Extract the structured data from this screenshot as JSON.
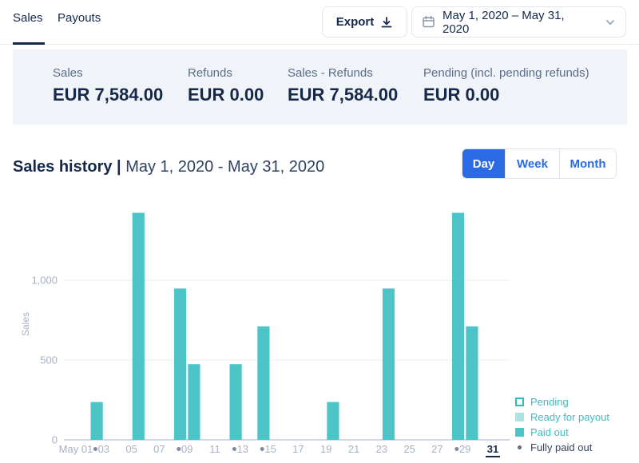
{
  "header": {
    "tabs": [
      {
        "label": "Sales",
        "active": true
      },
      {
        "label": "Payouts",
        "active": false
      }
    ],
    "export_label": "Export",
    "date_range": "May 1, 2020 – May 31, 2020"
  },
  "stats": [
    {
      "label": "Sales",
      "value": "EUR 7,584.00"
    },
    {
      "label": "Refunds",
      "value": "EUR 0.00"
    },
    {
      "label": "Sales - Refunds",
      "value": "EUR 7,584.00"
    },
    {
      "label": "Pending (incl. pending refunds)",
      "value": "EUR 0.00"
    }
  ],
  "section": {
    "title": "Sales history |",
    "range": " May 1, 2020 - May 31, 2020",
    "toggles": [
      {
        "label": "Day",
        "active": true
      },
      {
        "label": "Week",
        "active": false
      },
      {
        "label": "Month",
        "active": false
      }
    ]
  },
  "chart_data": {
    "type": "bar",
    "title": "Sales history May 1, 2020 - May 31, 2020",
    "ylabel": "Sales",
    "xlabel": "",
    "ylim": [
      0,
      1450
    ],
    "grid": true,
    "legend_position": "bottom-right",
    "y_ticks": [
      {
        "value": 0,
        "label": "0"
      },
      {
        "value": 500,
        "label": "500"
      },
      {
        "value": 1000,
        "label": "1,000"
      }
    ],
    "x_tick_days": [
      1,
      3,
      5,
      7,
      9,
      11,
      13,
      15,
      17,
      19,
      21,
      23,
      25,
      27,
      29,
      31
    ],
    "x_tick_labels": [
      "May 01",
      "03",
      "05",
      "07",
      "09",
      "11",
      "13",
      "15",
      "17",
      "19",
      "21",
      "23",
      "25",
      "27",
      "29",
      "31"
    ],
    "highlighted_day": 31,
    "bars": [
      {
        "day": 2,
        "value": 237,
        "status": "paid_out"
      },
      {
        "day": 5,
        "value": 1422,
        "status": "paid_out"
      },
      {
        "day": 8,
        "value": 948,
        "status": "paid_out"
      },
      {
        "day": 9,
        "value": 474,
        "status": "paid_out"
      },
      {
        "day": 12,
        "value": 474,
        "status": "paid_out"
      },
      {
        "day": 14,
        "value": 711,
        "status": "paid_out"
      },
      {
        "day": 19,
        "value": 237,
        "status": "paid_out"
      },
      {
        "day": 23,
        "value": 948,
        "status": "paid_out"
      },
      {
        "day": 28,
        "value": 1422,
        "status": "paid_out"
      },
      {
        "day": 29,
        "value": 711,
        "status": "paid_out"
      }
    ],
    "fully_paid_out_days": [
      2,
      8,
      12,
      14,
      28
    ],
    "legend": [
      {
        "label": "Pending",
        "style": "outline",
        "color": "#35b9be",
        "text_color": "#3fbdc2"
      },
      {
        "label": "Ready for payout",
        "style": "fill",
        "color": "#ade3e5",
        "text_color": "#3fbdc2"
      },
      {
        "label": "Paid out",
        "style": "fill",
        "color": "#4dc5c8",
        "text_color": "#3fbdc2"
      },
      {
        "label": "Fully paid out",
        "style": "dot",
        "color": "#5d6c85",
        "text_color": "#33445f"
      }
    ],
    "colors": {
      "bar": "#4dc5c8",
      "axis_text": "#a7b1c4",
      "grid_line": "#e9ecf1",
      "zero_line": "#a9b2c4",
      "highlight_text": "#16284a",
      "paid_dot": "#7d8aa0"
    }
  }
}
